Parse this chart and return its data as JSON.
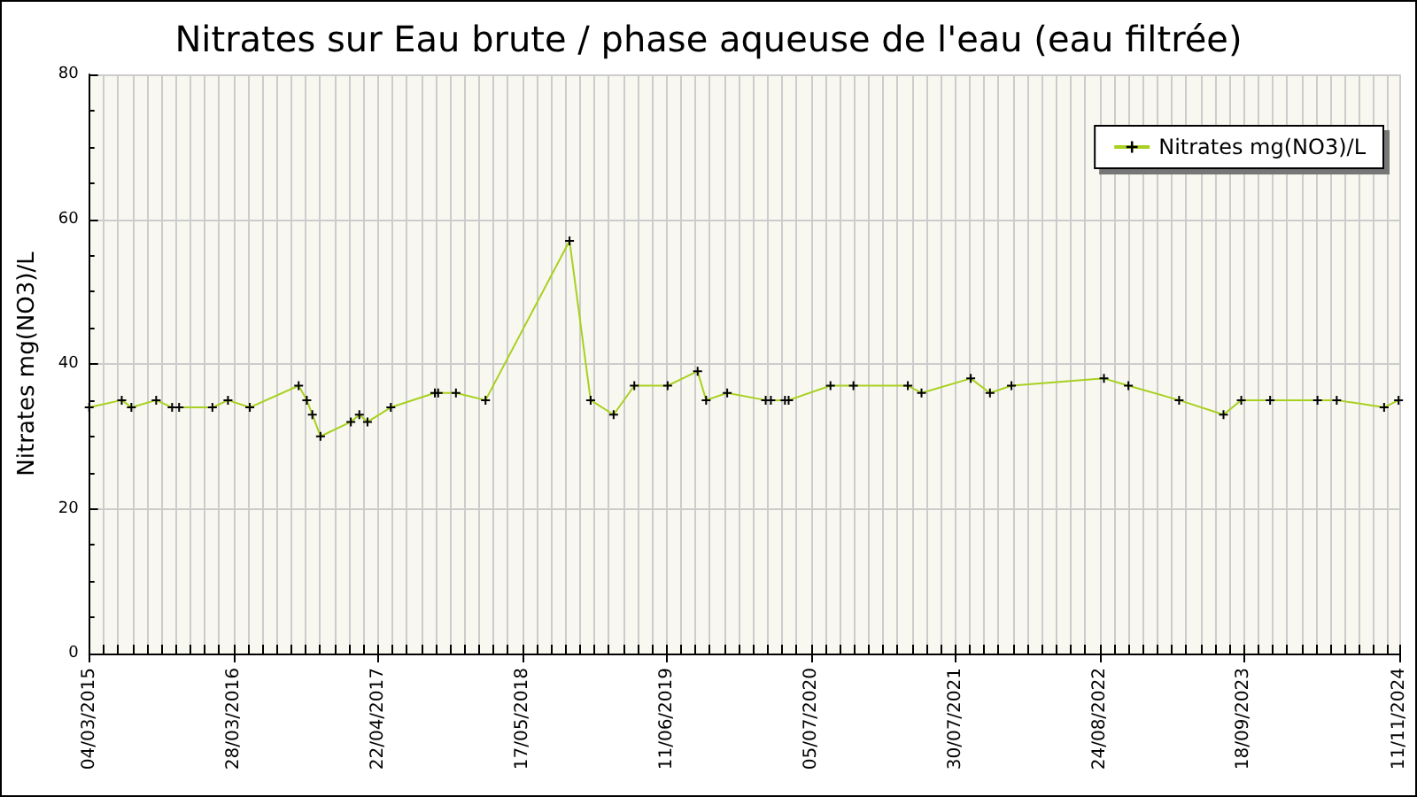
{
  "chart_data": {
    "type": "line",
    "title": "Nitrates sur Eau brute / phase aqueuse de l'eau (eau filtrée)",
    "ylabel": "Nitrates mg(NO3)/L",
    "x": [
      "2015-03-04",
      "2015-05-31",
      "2015-06-26",
      "2015-09-01",
      "2015-10-14",
      "2015-11-02",
      "2016-01-31",
      "2016-03-13",
      "2016-05-11",
      "2016-09-20",
      "2016-10-12",
      "2016-10-27",
      "2016-11-18",
      "2017-02-08",
      "2017-03-03",
      "2017-03-25",
      "2017-05-27",
      "2017-09-23",
      "2017-10-02",
      "2017-11-19",
      "2018-02-07",
      "2018-09-22",
      "2018-11-18",
      "2019-01-19",
      "2019-03-16",
      "2019-06-14",
      "2019-09-03",
      "2019-09-26",
      "2019-11-22",
      "2020-03-05",
      "2020-03-19",
      "2020-04-26",
      "2020-05-06",
      "2020-08-27",
      "2020-10-28",
      "2021-03-24",
      "2021-04-30",
      "2021-09-10",
      "2021-11-01",
      "2021-12-29",
      "2022-09-05",
      "2022-11-10",
      "2023-03-27",
      "2023-07-25",
      "2023-09-11",
      "2023-11-28",
      "2024-04-04",
      "2024-05-26",
      "2024-10-01",
      "2024-11-09"
    ],
    "series": [
      {
        "name": "Nitrates mg(NO3)/L",
        "color": "#a8d020",
        "values": [
          34,
          35,
          34,
          35,
          34,
          34,
          34,
          35,
          34,
          37,
          35,
          33,
          30,
          32,
          33,
          32,
          34,
          36,
          36,
          36,
          35,
          57,
          35,
          33,
          37,
          37,
          39,
          35,
          36,
          35,
          35,
          35,
          35,
          37,
          37,
          37,
          36,
          38,
          36,
          37,
          38,
          37,
          35,
          33,
          35,
          35,
          35,
          35,
          34,
          35
        ]
      }
    ],
    "xlim": [
      "2015-03-04",
      "2024-11-11"
    ],
    "xticks": [
      {
        "value": "2015-03-04",
        "label": "04/03/2015"
      },
      {
        "value": "2016-03-28",
        "label": "28/03/2016"
      },
      {
        "value": "2017-04-22",
        "label": "22/04/2017"
      },
      {
        "value": "2018-05-17",
        "label": "17/05/2018"
      },
      {
        "value": "2019-06-11",
        "label": "11/06/2019"
      },
      {
        "value": "2020-07-05",
        "label": "05/07/2020"
      },
      {
        "value": "2021-07-30",
        "label": "30/07/2021"
      },
      {
        "value": "2022-08-24",
        "label": "24/08/2022"
      },
      {
        "value": "2023-09-18",
        "label": "18/09/2023"
      },
      {
        "value": "2024-11-11",
        "label": "11/11/2024"
      }
    ],
    "ylim": [
      0,
      80
    ],
    "yticks": [
      0,
      20,
      40,
      60,
      80
    ],
    "grid": true,
    "legend": "top right",
    "marker": "cross",
    "line_style": "solid"
  }
}
